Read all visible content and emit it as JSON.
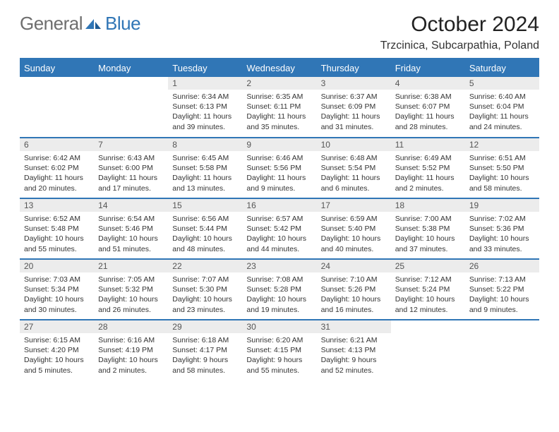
{
  "logo": {
    "general": "General",
    "blue": "Blue"
  },
  "header": {
    "title": "October 2024",
    "location": "Trzcinica, Subcarpathia, Poland"
  },
  "colors": {
    "brand_blue": "#3076b6",
    "gray_text": "#6e6e6e",
    "daynum_bg": "#ececec"
  },
  "day_headers": [
    "Sunday",
    "Monday",
    "Tuesday",
    "Wednesday",
    "Thursday",
    "Friday",
    "Saturday"
  ],
  "weeks": [
    [
      {
        "blank": true
      },
      {
        "blank": true
      },
      {
        "n": "1",
        "sunrise": "6:34 AM",
        "sunset": "6:13 PM",
        "daylight": "11 hours and 39 minutes."
      },
      {
        "n": "2",
        "sunrise": "6:35 AM",
        "sunset": "6:11 PM",
        "daylight": "11 hours and 35 minutes."
      },
      {
        "n": "3",
        "sunrise": "6:37 AM",
        "sunset": "6:09 PM",
        "daylight": "11 hours and 31 minutes."
      },
      {
        "n": "4",
        "sunrise": "6:38 AM",
        "sunset": "6:07 PM",
        "daylight": "11 hours and 28 minutes."
      },
      {
        "n": "5",
        "sunrise": "6:40 AM",
        "sunset": "6:04 PM",
        "daylight": "11 hours and 24 minutes."
      }
    ],
    [
      {
        "n": "6",
        "sunrise": "6:42 AM",
        "sunset": "6:02 PM",
        "daylight": "11 hours and 20 minutes."
      },
      {
        "n": "7",
        "sunrise": "6:43 AM",
        "sunset": "6:00 PM",
        "daylight": "11 hours and 17 minutes."
      },
      {
        "n": "8",
        "sunrise": "6:45 AM",
        "sunset": "5:58 PM",
        "daylight": "11 hours and 13 minutes."
      },
      {
        "n": "9",
        "sunrise": "6:46 AM",
        "sunset": "5:56 PM",
        "daylight": "11 hours and 9 minutes."
      },
      {
        "n": "10",
        "sunrise": "6:48 AM",
        "sunset": "5:54 PM",
        "daylight": "11 hours and 6 minutes."
      },
      {
        "n": "11",
        "sunrise": "6:49 AM",
        "sunset": "5:52 PM",
        "daylight": "11 hours and 2 minutes."
      },
      {
        "n": "12",
        "sunrise": "6:51 AM",
        "sunset": "5:50 PM",
        "daylight": "10 hours and 58 minutes."
      }
    ],
    [
      {
        "n": "13",
        "sunrise": "6:52 AM",
        "sunset": "5:48 PM",
        "daylight": "10 hours and 55 minutes."
      },
      {
        "n": "14",
        "sunrise": "6:54 AM",
        "sunset": "5:46 PM",
        "daylight": "10 hours and 51 minutes."
      },
      {
        "n": "15",
        "sunrise": "6:56 AM",
        "sunset": "5:44 PM",
        "daylight": "10 hours and 48 minutes."
      },
      {
        "n": "16",
        "sunrise": "6:57 AM",
        "sunset": "5:42 PM",
        "daylight": "10 hours and 44 minutes."
      },
      {
        "n": "17",
        "sunrise": "6:59 AM",
        "sunset": "5:40 PM",
        "daylight": "10 hours and 40 minutes."
      },
      {
        "n": "18",
        "sunrise": "7:00 AM",
        "sunset": "5:38 PM",
        "daylight": "10 hours and 37 minutes."
      },
      {
        "n": "19",
        "sunrise": "7:02 AM",
        "sunset": "5:36 PM",
        "daylight": "10 hours and 33 minutes."
      }
    ],
    [
      {
        "n": "20",
        "sunrise": "7:03 AM",
        "sunset": "5:34 PM",
        "daylight": "10 hours and 30 minutes."
      },
      {
        "n": "21",
        "sunrise": "7:05 AM",
        "sunset": "5:32 PM",
        "daylight": "10 hours and 26 minutes."
      },
      {
        "n": "22",
        "sunrise": "7:07 AM",
        "sunset": "5:30 PM",
        "daylight": "10 hours and 23 minutes."
      },
      {
        "n": "23",
        "sunrise": "7:08 AM",
        "sunset": "5:28 PM",
        "daylight": "10 hours and 19 minutes."
      },
      {
        "n": "24",
        "sunrise": "7:10 AM",
        "sunset": "5:26 PM",
        "daylight": "10 hours and 16 minutes."
      },
      {
        "n": "25",
        "sunrise": "7:12 AM",
        "sunset": "5:24 PM",
        "daylight": "10 hours and 12 minutes."
      },
      {
        "n": "26",
        "sunrise": "7:13 AM",
        "sunset": "5:22 PM",
        "daylight": "10 hours and 9 minutes."
      }
    ],
    [
      {
        "n": "27",
        "sunrise": "6:15 AM",
        "sunset": "4:20 PM",
        "daylight": "10 hours and 5 minutes."
      },
      {
        "n": "28",
        "sunrise": "6:16 AM",
        "sunset": "4:19 PM",
        "daylight": "10 hours and 2 minutes."
      },
      {
        "n": "29",
        "sunrise": "6:18 AM",
        "sunset": "4:17 PM",
        "daylight": "9 hours and 58 minutes."
      },
      {
        "n": "30",
        "sunrise": "6:20 AM",
        "sunset": "4:15 PM",
        "daylight": "9 hours and 55 minutes."
      },
      {
        "n": "31",
        "sunrise": "6:21 AM",
        "sunset": "4:13 PM",
        "daylight": "9 hours and 52 minutes."
      },
      {
        "blank": true
      },
      {
        "blank": true
      }
    ]
  ],
  "labels": {
    "sunrise": "Sunrise:",
    "sunset": "Sunset:",
    "daylight": "Daylight:"
  }
}
